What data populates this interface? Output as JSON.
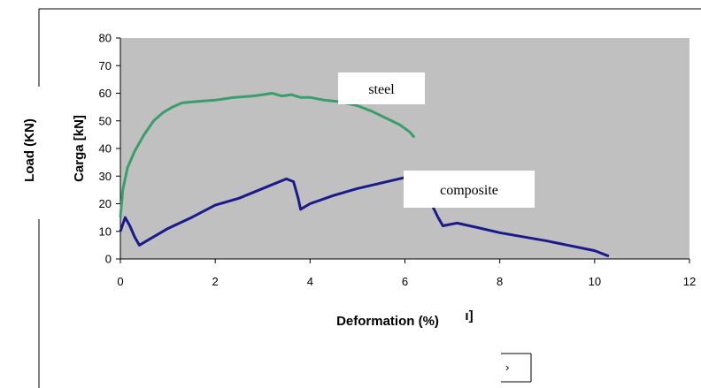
{
  "chart_data": {
    "type": "line",
    "title": "",
    "xlabel": "Deformation (%)",
    "xlabel_fragment": "ı]",
    "ylabel": "Carga [kN]",
    "ylabel_overlay": "Load (KN)",
    "xlim": [
      0,
      12
    ],
    "ylim": [
      0,
      80
    ],
    "xticks": [
      0,
      2,
      4,
      6,
      8,
      10,
      12
    ],
    "yticks": [
      0,
      10,
      20,
      30,
      40,
      50,
      60,
      70,
      80
    ],
    "grid": false,
    "plot_background": "#c0c0c0",
    "legend": "none",
    "annotations": [
      {
        "text": "steel",
        "series": "steel"
      },
      {
        "text": "composite",
        "series": "composite"
      }
    ],
    "stray_mark": "›",
    "series": [
      {
        "name": "steel",
        "color": "#3a9e6c",
        "x": [
          0.0,
          0.05,
          0.15,
          0.3,
          0.5,
          0.7,
          0.9,
          1.1,
          1.3,
          1.6,
          2.0,
          2.4,
          2.8,
          3.0,
          3.2,
          3.4,
          3.6,
          3.8,
          4.0,
          4.3,
          4.6,
          5.0,
          5.3,
          5.6,
          5.9,
          6.1,
          6.2
        ],
        "y": [
          15,
          25,
          33,
          39,
          45,
          50,
          53,
          55,
          56.5,
          57,
          57.5,
          58.5,
          59,
          59.5,
          60,
          59,
          59.5,
          58.5,
          58.5,
          57.5,
          57,
          55.5,
          53.5,
          51,
          48.5,
          46,
          44
        ]
      },
      {
        "name": "composite",
        "color": "#1a1a8c",
        "x": [
          0.0,
          0.1,
          0.2,
          0.3,
          0.4,
          0.6,
          1.0,
          1.5,
          2.0,
          2.5,
          3.0,
          3.5,
          3.65,
          3.75,
          3.8,
          4.0,
          4.5,
          5.0,
          5.5,
          6.0,
          6.3,
          6.5,
          6.7,
          6.8,
          7.1,
          7.5,
          8.0,
          9.0,
          10.0,
          10.3
        ],
        "y": [
          10,
          15,
          12,
          8,
          5,
          7,
          11,
          15,
          19.5,
          22,
          25.5,
          29,
          28,
          22,
          18,
          20,
          23,
          25.5,
          27.5,
          29.5,
          27,
          22,
          15,
          12,
          13,
          11.5,
          9.5,
          6.5,
          3,
          1
        ]
      }
    ]
  }
}
